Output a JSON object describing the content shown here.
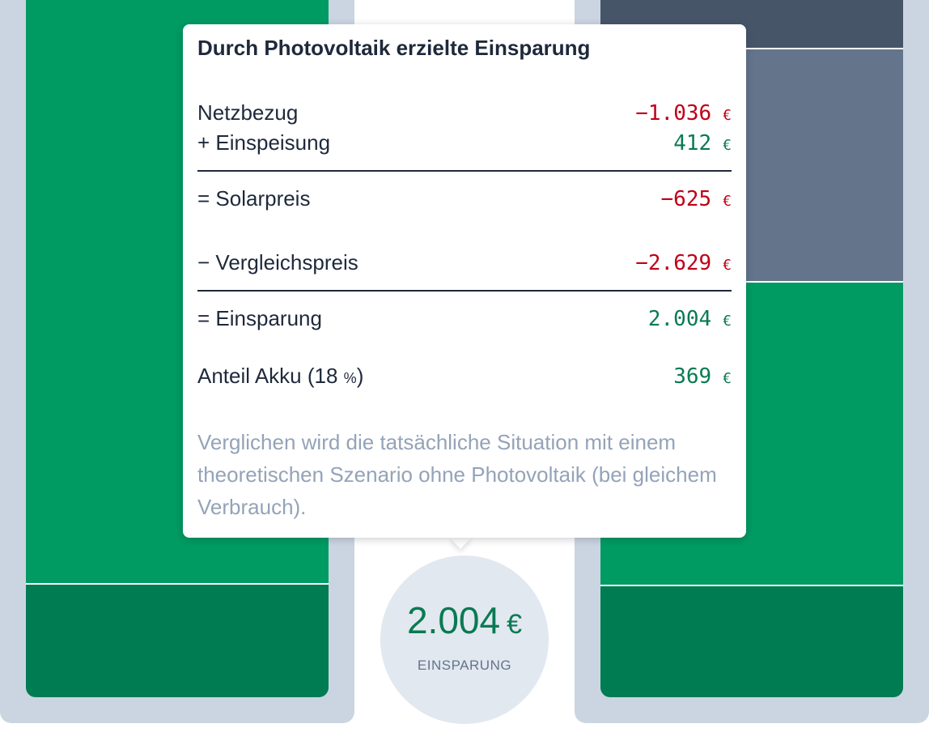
{
  "tooltip": {
    "title": "Durch Photovoltaik erzielte Einsparung",
    "currency": "€",
    "rows": {
      "netzbezug": {
        "label": "Netzbezug",
        "value": "−1.036"
      },
      "einspeisung": {
        "label": "+ Einspeisung",
        "value": "412"
      },
      "solarpreis": {
        "label": "= Solarpreis",
        "value": "−625"
      },
      "vergleichspreis": {
        "label": "− Vergleichspreis",
        "value": "−2.629"
      },
      "einsparung": {
        "label": "= Einsparung",
        "value": "2.004"
      },
      "akku": {
        "label_prefix": "Anteil Akku (",
        "percent": "18",
        "percent_unit": "%",
        "label_suffix": ")",
        "value": "369"
      }
    },
    "note": "Verglichen wird die tatsächliche Situation mit einem theoretischen Szenario ohne Photovoltaik (bei gleichem Verbrauch)."
  },
  "badge": {
    "value": "2.004",
    "currency": "€",
    "label": "EINSPARUNG"
  },
  "colors": {
    "green": "#009b63",
    "dark_green": "#007c53",
    "slate_dark": "#475569",
    "slate": "#64748b",
    "panel_bg": "#cbd5e1",
    "negative": "#c00018",
    "positive": "#0a7a52"
  }
}
